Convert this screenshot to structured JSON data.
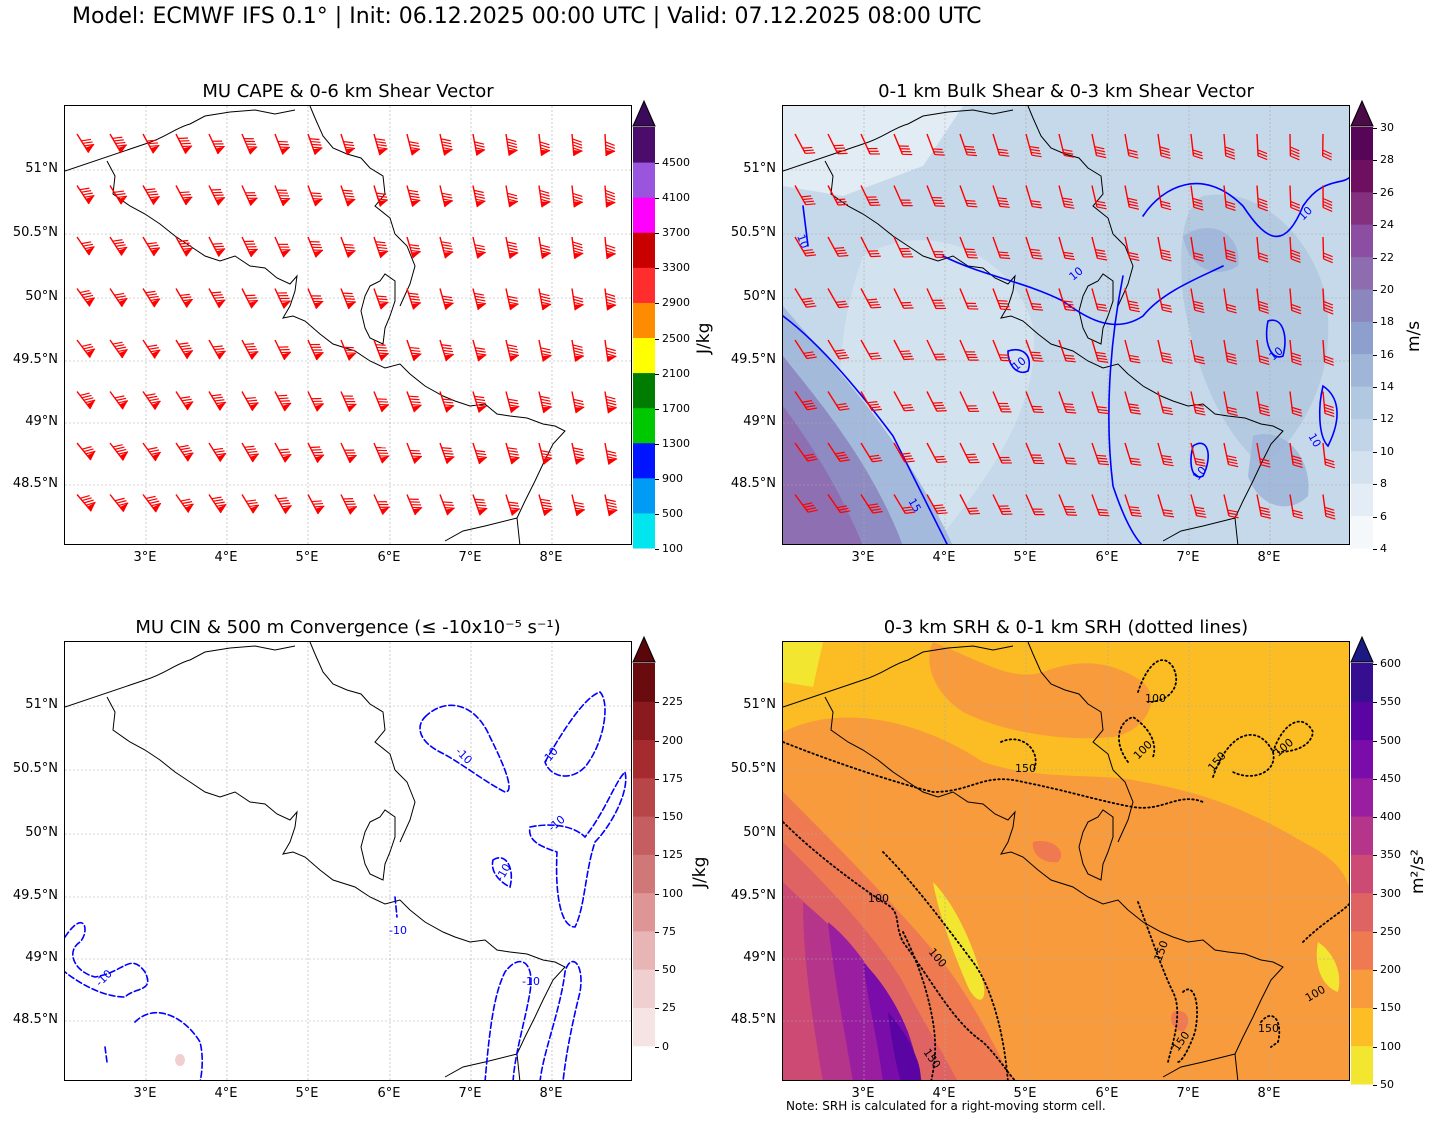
{
  "suptitle": "Model: ECMWF IFS 0.1° | Init: 06.12.2025 00:00 UTC | Valid: 07.12.2025 08:00 UTC",
  "axes": {
    "x_ticks": [
      "3°E",
      "4°E",
      "5°E",
      "6°E",
      "7°E",
      "8°E"
    ],
    "y_ticks": [
      "51°N",
      "50.5°N",
      "50°N",
      "49.5°N",
      "49°N",
      "48.5°N"
    ]
  },
  "panels": [
    {
      "id": "cape",
      "title": "MU CAPE & 0-6 km Shear Vector",
      "colorbar": {
        "label": "J/kg",
        "ticks": [
          "100",
          "500",
          "900",
          "1300",
          "1700",
          "2100",
          "2500",
          "2900",
          "3300",
          "3700",
          "4100",
          "4500"
        ],
        "colors": [
          "#00e5ee",
          "#009bf5",
          "#0014ff",
          "#00c800",
          "#007d00",
          "#ffff00",
          "#ff8c00",
          "#ff2d2d",
          "#c80000",
          "#ff00ff",
          "#9955dd",
          "#4b0c6b"
        ],
        "extend_color": "#3b0a5a"
      },
      "barb_color": "#ff0000"
    },
    {
      "id": "shear",
      "title": "0-1 km Bulk Shear & 0-3 km Shear Vector",
      "colorbar": {
        "label": "m/s",
        "ticks": [
          "4",
          "6",
          "8",
          "10",
          "12",
          "14",
          "16",
          "18",
          "20",
          "22",
          "24",
          "26",
          "28",
          "30"
        ],
        "colors": [
          "#f5f8fb",
          "#e4edf5",
          "#d3e2ee",
          "#c2d5e8",
          "#b0c8e0",
          "#9fb6d9",
          "#8d9fcd",
          "#8c86bf",
          "#8d6cb0",
          "#8c4ea2",
          "#85307e",
          "#6e0f60",
          "#560558"
        ],
        "extend_color": "#4a0b47"
      },
      "contour_labels": [
        "10",
        "10",
        "10",
        "10",
        "10",
        "10",
        "10",
        "15"
      ],
      "barb_color": "#ff0000",
      "contour_color": "#0000ff"
    },
    {
      "id": "cin",
      "title": "MU CIN & 500 m Convergence (≤ -10x10⁻⁵ s⁻¹)",
      "colorbar": {
        "label": "J/kg",
        "ticks": [
          "0",
          "25",
          "50",
          "75",
          "100",
          "125",
          "150",
          "175",
          "200",
          "225"
        ],
        "colors": [
          "#ffffff",
          "#f6e3e3",
          "#f0cfd0",
          "#e8b5b6",
          "#dd9596",
          "#d07778",
          "#c45e60",
          "#b84547",
          "#a52b2f",
          "#8b1a1e",
          "#6a0b10"
        ],
        "extend_color": "#5a070c"
      },
      "contour_labels": [
        "-10",
        "-10",
        "-10",
        "-10",
        "-10",
        "-10",
        "-10"
      ],
      "contour_color": "#0000ff"
    },
    {
      "id": "srh",
      "title": "0-3 km SRH & 0-1 km SRH (dotted lines)",
      "colorbar": {
        "label": "m²/s²",
        "ticks": [
          "50",
          "100",
          "150",
          "200",
          "250",
          "300",
          "350",
          "400",
          "450",
          "500",
          "550",
          "600"
        ],
        "colors": [
          "#f3e630",
          "#fdbd25",
          "#f89b3c",
          "#ef7a51",
          "#e06363",
          "#cc4a74",
          "#b5358a",
          "#9a1fa0",
          "#7a0ca9",
          "#5a05a3",
          "#360e90"
        ],
        "extend_color": "#1c1a82"
      },
      "contour_labels": [
        "100",
        "100",
        "150",
        "100",
        "100",
        "100",
        "150",
        "150",
        "100",
        "150",
        "150",
        "150"
      ],
      "note": "Note: SRH is calculated for a right-moving storm cell."
    }
  ]
}
